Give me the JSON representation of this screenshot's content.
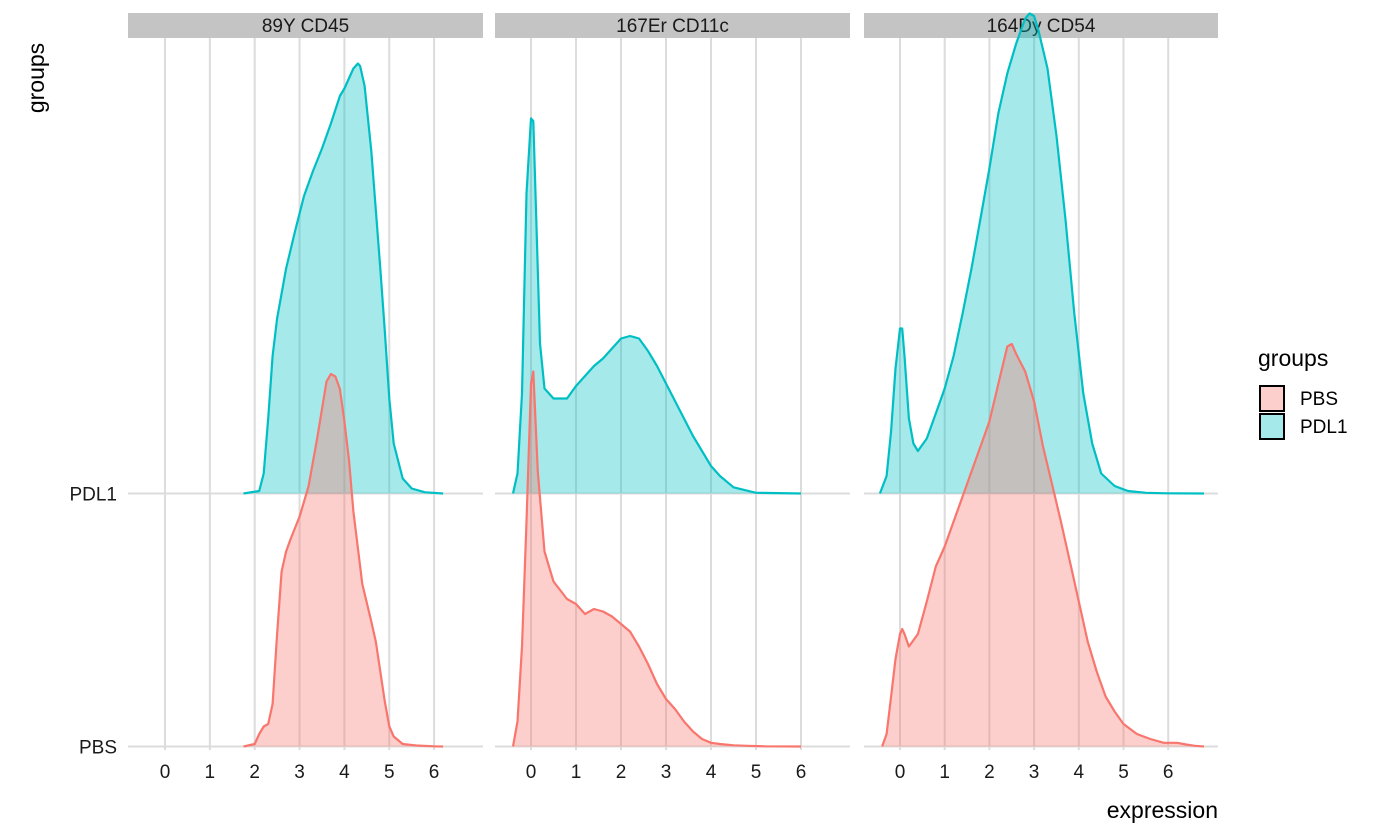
{
  "chart_data": {
    "type": "ridgeline-density",
    "xlabel": "expression",
    "ylabel": "groups",
    "x_ticks": [
      "0",
      "1",
      "2",
      "3",
      "4",
      "5",
      "6"
    ],
    "xlim": [
      -0.8,
      7.0
    ],
    "y_categories": [
      "PBS",
      "PDL1"
    ],
    "legend": {
      "title": "groups",
      "position": "right",
      "entries": [
        {
          "label": "PBS",
          "color": "#F8766D"
        },
        {
          "label": "PDL1",
          "color": "#00BFC4"
        }
      ]
    },
    "facets": [
      {
        "title": "89Y  CD45",
        "series": [
          {
            "name": "PBS",
            "color": "#F8766D",
            "x": [
              1.75,
              2.0,
              2.1,
              2.2,
              2.3,
              2.4,
              2.5,
              2.6,
              2.7,
              2.8,
              3.0,
              3.2,
              3.4,
              3.6,
              3.7,
              3.8,
              3.9,
              4.0,
              4.1,
              4.2,
              4.4,
              4.6,
              4.7,
              4.8,
              4.9,
              5.0,
              5.1,
              5.3,
              5.6,
              6.0,
              6.2
            ],
            "density": [
              0.0,
              0.01,
              0.05,
              0.08,
              0.09,
              0.17,
              0.45,
              0.7,
              0.78,
              0.83,
              0.92,
              1.04,
              1.24,
              1.46,
              1.49,
              1.48,
              1.43,
              1.3,
              1.15,
              0.94,
              0.65,
              0.5,
              0.42,
              0.3,
              0.18,
              0.08,
              0.04,
              0.01,
              0.004,
              0.001,
              0.0
            ]
          },
          {
            "name": "PDL1",
            "color": "#00BFC4",
            "x": [
              1.75,
              2.1,
              2.2,
              2.3,
              2.4,
              2.5,
              2.6,
              2.7,
              2.9,
              3.1,
              3.3,
              3.5,
              3.7,
              3.9,
              4.0,
              4.1,
              4.2,
              4.3,
              4.35,
              4.45,
              4.6,
              4.8,
              4.9,
              5.0,
              5.1,
              5.3,
              5.5,
              5.8,
              6.2
            ],
            "density": [
              0.0,
              0.01,
              0.08,
              0.3,
              0.55,
              0.7,
              0.8,
              0.9,
              1.05,
              1.19,
              1.29,
              1.38,
              1.48,
              1.59,
              1.62,
              1.66,
              1.7,
              1.72,
              1.71,
              1.63,
              1.37,
              0.9,
              0.65,
              0.38,
              0.2,
              0.06,
              0.02,
              0.005,
              0.0
            ]
          }
        ]
      },
      {
        "title": "167Er  CD11c",
        "series": [
          {
            "name": "PBS",
            "color": "#F8766D",
            "x": [
              -0.4,
              -0.3,
              -0.2,
              -0.1,
              0.0,
              0.05,
              0.15,
              0.3,
              0.5,
              0.8,
              1.0,
              1.2,
              1.4,
              1.6,
              1.8,
              2.0,
              2.2,
              2.4,
              2.6,
              2.8,
              3.0,
              3.2,
              3.4,
              3.6,
              3.8,
              4.0,
              4.2,
              4.5,
              4.8,
              5.2,
              6.0
            ],
            "density": [
              0.0,
              0.1,
              0.4,
              0.9,
              1.45,
              1.5,
              1.1,
              0.78,
              0.66,
              0.59,
              0.57,
              0.53,
              0.55,
              0.54,
              0.52,
              0.49,
              0.46,
              0.4,
              0.33,
              0.25,
              0.19,
              0.15,
              0.1,
              0.06,
              0.03,
              0.015,
              0.01,
              0.005,
              0.003,
              0.001,
              0.0
            ]
          },
          {
            "name": "PDL1",
            "color": "#00BFC4",
            "x": [
              -0.4,
              -0.3,
              -0.2,
              -0.1,
              0.0,
              0.05,
              0.1,
              0.2,
              0.3,
              0.5,
              0.8,
              1.0,
              1.2,
              1.4,
              1.6,
              1.8,
              2.0,
              2.2,
              2.4,
              2.6,
              2.8,
              3.0,
              3.2,
              3.4,
              3.6,
              3.8,
              4.0,
              4.2,
              4.5,
              5.0,
              6.0
            ],
            "density": [
              0.0,
              0.08,
              0.4,
              1.2,
              1.5,
              1.49,
              1.2,
              0.6,
              0.42,
              0.38,
              0.38,
              0.43,
              0.47,
              0.51,
              0.54,
              0.58,
              0.62,
              0.63,
              0.62,
              0.57,
              0.51,
              0.44,
              0.37,
              0.3,
              0.23,
              0.17,
              0.11,
              0.07,
              0.025,
              0.003,
              0.0
            ]
          }
        ]
      },
      {
        "title": "164Dy  CD54",
        "series": [
          {
            "name": "PBS",
            "color": "#F8766D",
            "x": [
              -0.4,
              -0.3,
              -0.2,
              -0.1,
              0.0,
              0.05,
              0.1,
              0.2,
              0.4,
              0.6,
              0.8,
              1.0,
              1.2,
              1.4,
              1.6,
              1.8,
              2.0,
              2.2,
              2.4,
              2.5,
              2.6,
              2.8,
              3.0,
              3.2,
              3.4,
              3.6,
              3.8,
              4.0,
              4.2,
              4.4,
              4.6,
              4.8,
              5.0,
              5.3,
              5.6,
              5.9,
              6.2,
              6.4,
              6.6,
              6.8
            ],
            "density": [
              0.0,
              0.05,
              0.2,
              0.35,
              0.45,
              0.47,
              0.45,
              0.4,
              0.45,
              0.58,
              0.72,
              0.8,
              0.9,
              1.0,
              1.1,
              1.2,
              1.3,
              1.45,
              1.6,
              1.61,
              1.57,
              1.5,
              1.38,
              1.2,
              1.05,
              0.9,
              0.74,
              0.58,
              0.42,
              0.3,
              0.2,
              0.14,
              0.09,
              0.05,
              0.03,
              0.015,
              0.015,
              0.008,
              0.003,
              0.0
            ]
          },
          {
            "name": "PDL1",
            "color": "#00BFC4",
            "x": [
              -0.45,
              -0.3,
              -0.2,
              -0.1,
              0.0,
              0.05,
              0.1,
              0.2,
              0.3,
              0.4,
              0.6,
              0.8,
              1.0,
              1.2,
              1.4,
              1.6,
              1.8,
              2.0,
              2.2,
              2.4,
              2.6,
              2.8,
              2.9,
              3.0,
              3.1,
              3.3,
              3.5,
              3.7,
              3.9,
              4.1,
              4.3,
              4.5,
              4.8,
              5.1,
              5.5,
              6.0,
              6.8
            ],
            "density": [
              0.0,
              0.07,
              0.25,
              0.5,
              0.66,
              0.66,
              0.55,
              0.3,
              0.2,
              0.17,
              0.22,
              0.32,
              0.42,
              0.55,
              0.72,
              0.9,
              1.1,
              1.3,
              1.52,
              1.68,
              1.8,
              1.9,
              1.92,
              1.91,
              1.85,
              1.7,
              1.43,
              1.1,
              0.72,
              0.4,
              0.2,
              0.08,
              0.03,
              0.01,
              0.003,
              0.001,
              0.0
            ]
          }
        ]
      }
    ]
  }
}
